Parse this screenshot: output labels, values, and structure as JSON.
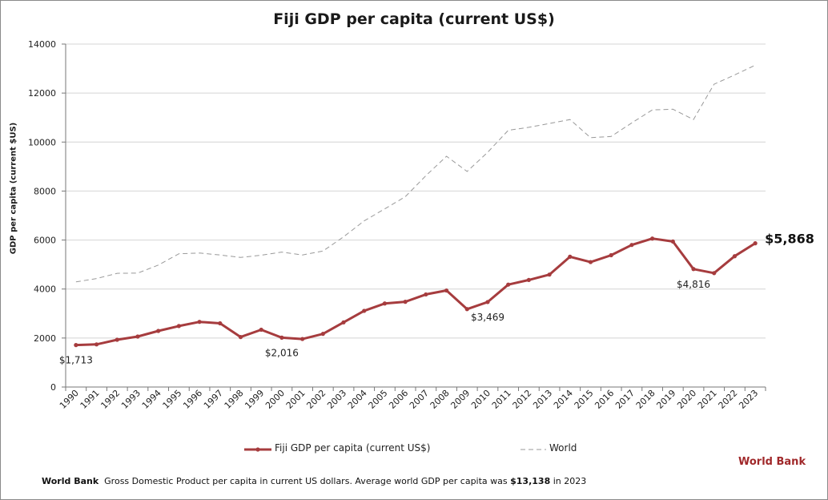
{
  "chart_data": {
    "type": "line",
    "title": "Fiji GDP per capita (current US$)",
    "ylabel": "GDP per capita (current $US)",
    "xlabel": "",
    "ylim": [
      0,
      14000
    ],
    "yticks": [
      0,
      2000,
      4000,
      6000,
      8000,
      10000,
      12000,
      14000
    ],
    "grid": "horizontal",
    "legend_position": "bottom",
    "categories": [
      "1990",
      "1991",
      "1992",
      "1993",
      "1994",
      "1995",
      "1996",
      "1997",
      "1998",
      "1999",
      "2000",
      "2001",
      "2002",
      "2003",
      "2004",
      "2005",
      "2006",
      "2007",
      "2008",
      "2009",
      "2010",
      "2011",
      "2012",
      "2013",
      "2014",
      "2015",
      "2016",
      "2017",
      "2018",
      "2019",
      "2020",
      "2021",
      "2022",
      "2023"
    ],
    "series": [
      {
        "name": "Fiji GDP per capita (current US$)",
        "color": "#a63c3e",
        "style": "solid-markers",
        "values": [
          1713,
          1740,
          1930,
          2060,
          2290,
          2490,
          2660,
          2600,
          2040,
          2340,
          2016,
          1960,
          2170,
          2640,
          3110,
          3410,
          3480,
          3780,
          3940,
          3180,
          3469,
          4180,
          4370,
          4590,
          5320,
          5100,
          5380,
          5800,
          6060,
          5940,
          4816,
          4650,
          5340,
          5868
        ]
      },
      {
        "name": "World",
        "color": "#999999",
        "style": "dashed",
        "values": [
          4290,
          4430,
          4640,
          4650,
          4980,
          5440,
          5470,
          5390,
          5290,
          5380,
          5510,
          5390,
          5550,
          6130,
          6780,
          7270,
          7770,
          8630,
          9420,
          8800,
          9580,
          10480,
          10600,
          10760,
          10920,
          10180,
          10230,
          10780,
          11310,
          11340,
          10920,
          12360,
          12740,
          13138
        ]
      }
    ],
    "annotations": [
      {
        "series": 0,
        "index": 0,
        "text": "$1,713"
      },
      {
        "series": 0,
        "index": 10,
        "text": "$2,016"
      },
      {
        "series": 0,
        "index": 20,
        "text": "$3,469"
      },
      {
        "series": 0,
        "index": 30,
        "text": "$4,816"
      },
      {
        "series": 0,
        "index": 33,
        "text": "$5,868",
        "emphasis": true
      }
    ]
  },
  "legend": {
    "fiji_label": "Fiji GDP per capita (current US$)",
    "world_label": "World"
  },
  "brand": "World Bank",
  "footer": {
    "source": "World Bank",
    "text": "Gross Domestic Product per capita in current US dollars.  Average world GDP per capita was ",
    "highlight": "$13,138",
    "suffix": " in 2023"
  }
}
